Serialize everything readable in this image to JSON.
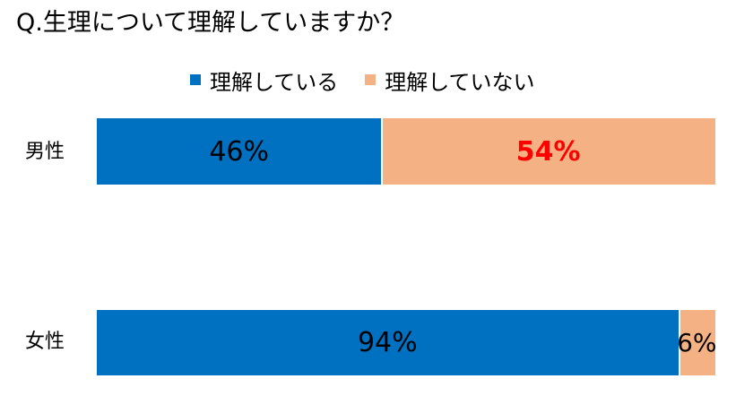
{
  "chart_data": {
    "type": "bar",
    "orientation": "horizontal",
    "stacked": "100%",
    "title": "Q.生理について理解していますか？",
    "categories": [
      "男性",
      "女性"
    ],
    "series": [
      {
        "name": "理解している",
        "values": [
          46,
          94
        ],
        "labels": [
          "46%",
          "94%"
        ],
        "color": "#0070C0",
        "label_color": "#000000",
        "label_bold": [
          false,
          false
        ]
      },
      {
        "name": "理解していない",
        "values": [
          54,
          6
        ],
        "labels": [
          "54%",
          "6%"
        ],
        "color": "#F4B183",
        "label_color": [
          "#FF0000",
          "#000000"
        ],
        "label_bold": [
          true,
          false
        ]
      }
    ],
    "xlim": [
      0,
      100
    ],
    "legend": "top",
    "grid": false
  }
}
